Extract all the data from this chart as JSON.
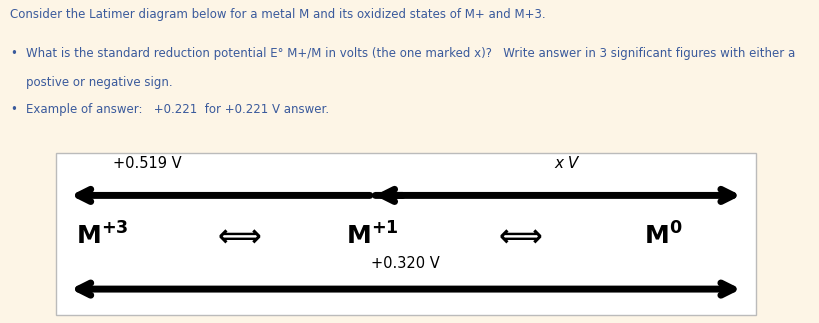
{
  "bg_color": "#fdf5e6",
  "box_bg_color": "#ffffff",
  "text_color_blue": "#3a5a9c",
  "title": "Consider the Latimer diagram below for a metal M and its oxidized states of M+ and M+3.",
  "bullet1_main": "What is the standard reduction potential E° M+/M in volts (the one marked x)?   Write answer in 3 significant figures with either a",
  "bullet1_cont": "postive or negative sign.",
  "bullet2": "Example of answer:   +0.221  for +0.221 V answer.",
  "upper_left_label": "+0.519 V",
  "upper_right_label": "x V",
  "lower_label": "+0.320 V",
  "arrow_lw": 5,
  "arrow_mutation": 22,
  "fig_w": 8.19,
  "fig_h": 3.23,
  "dpi": 100
}
